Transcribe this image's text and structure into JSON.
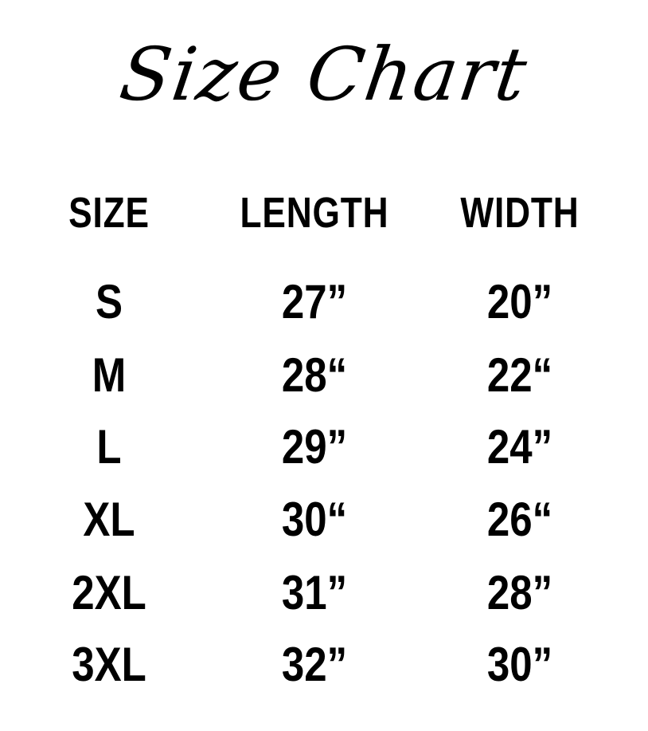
{
  "title": "Size Chart",
  "table": {
    "headers": [
      "SIZE",
      "LENGTH",
      "WIDTH"
    ],
    "rows": [
      [
        "S",
        "27”",
        "20”"
      ],
      [
        "M",
        "28“",
        "22“"
      ],
      [
        "L",
        "29”",
        "24”"
      ],
      [
        "XL",
        "30“",
        "26“"
      ],
      [
        "2XL",
        "31”",
        "28”"
      ],
      [
        "3XL",
        "32”",
        "30”"
      ]
    ]
  }
}
